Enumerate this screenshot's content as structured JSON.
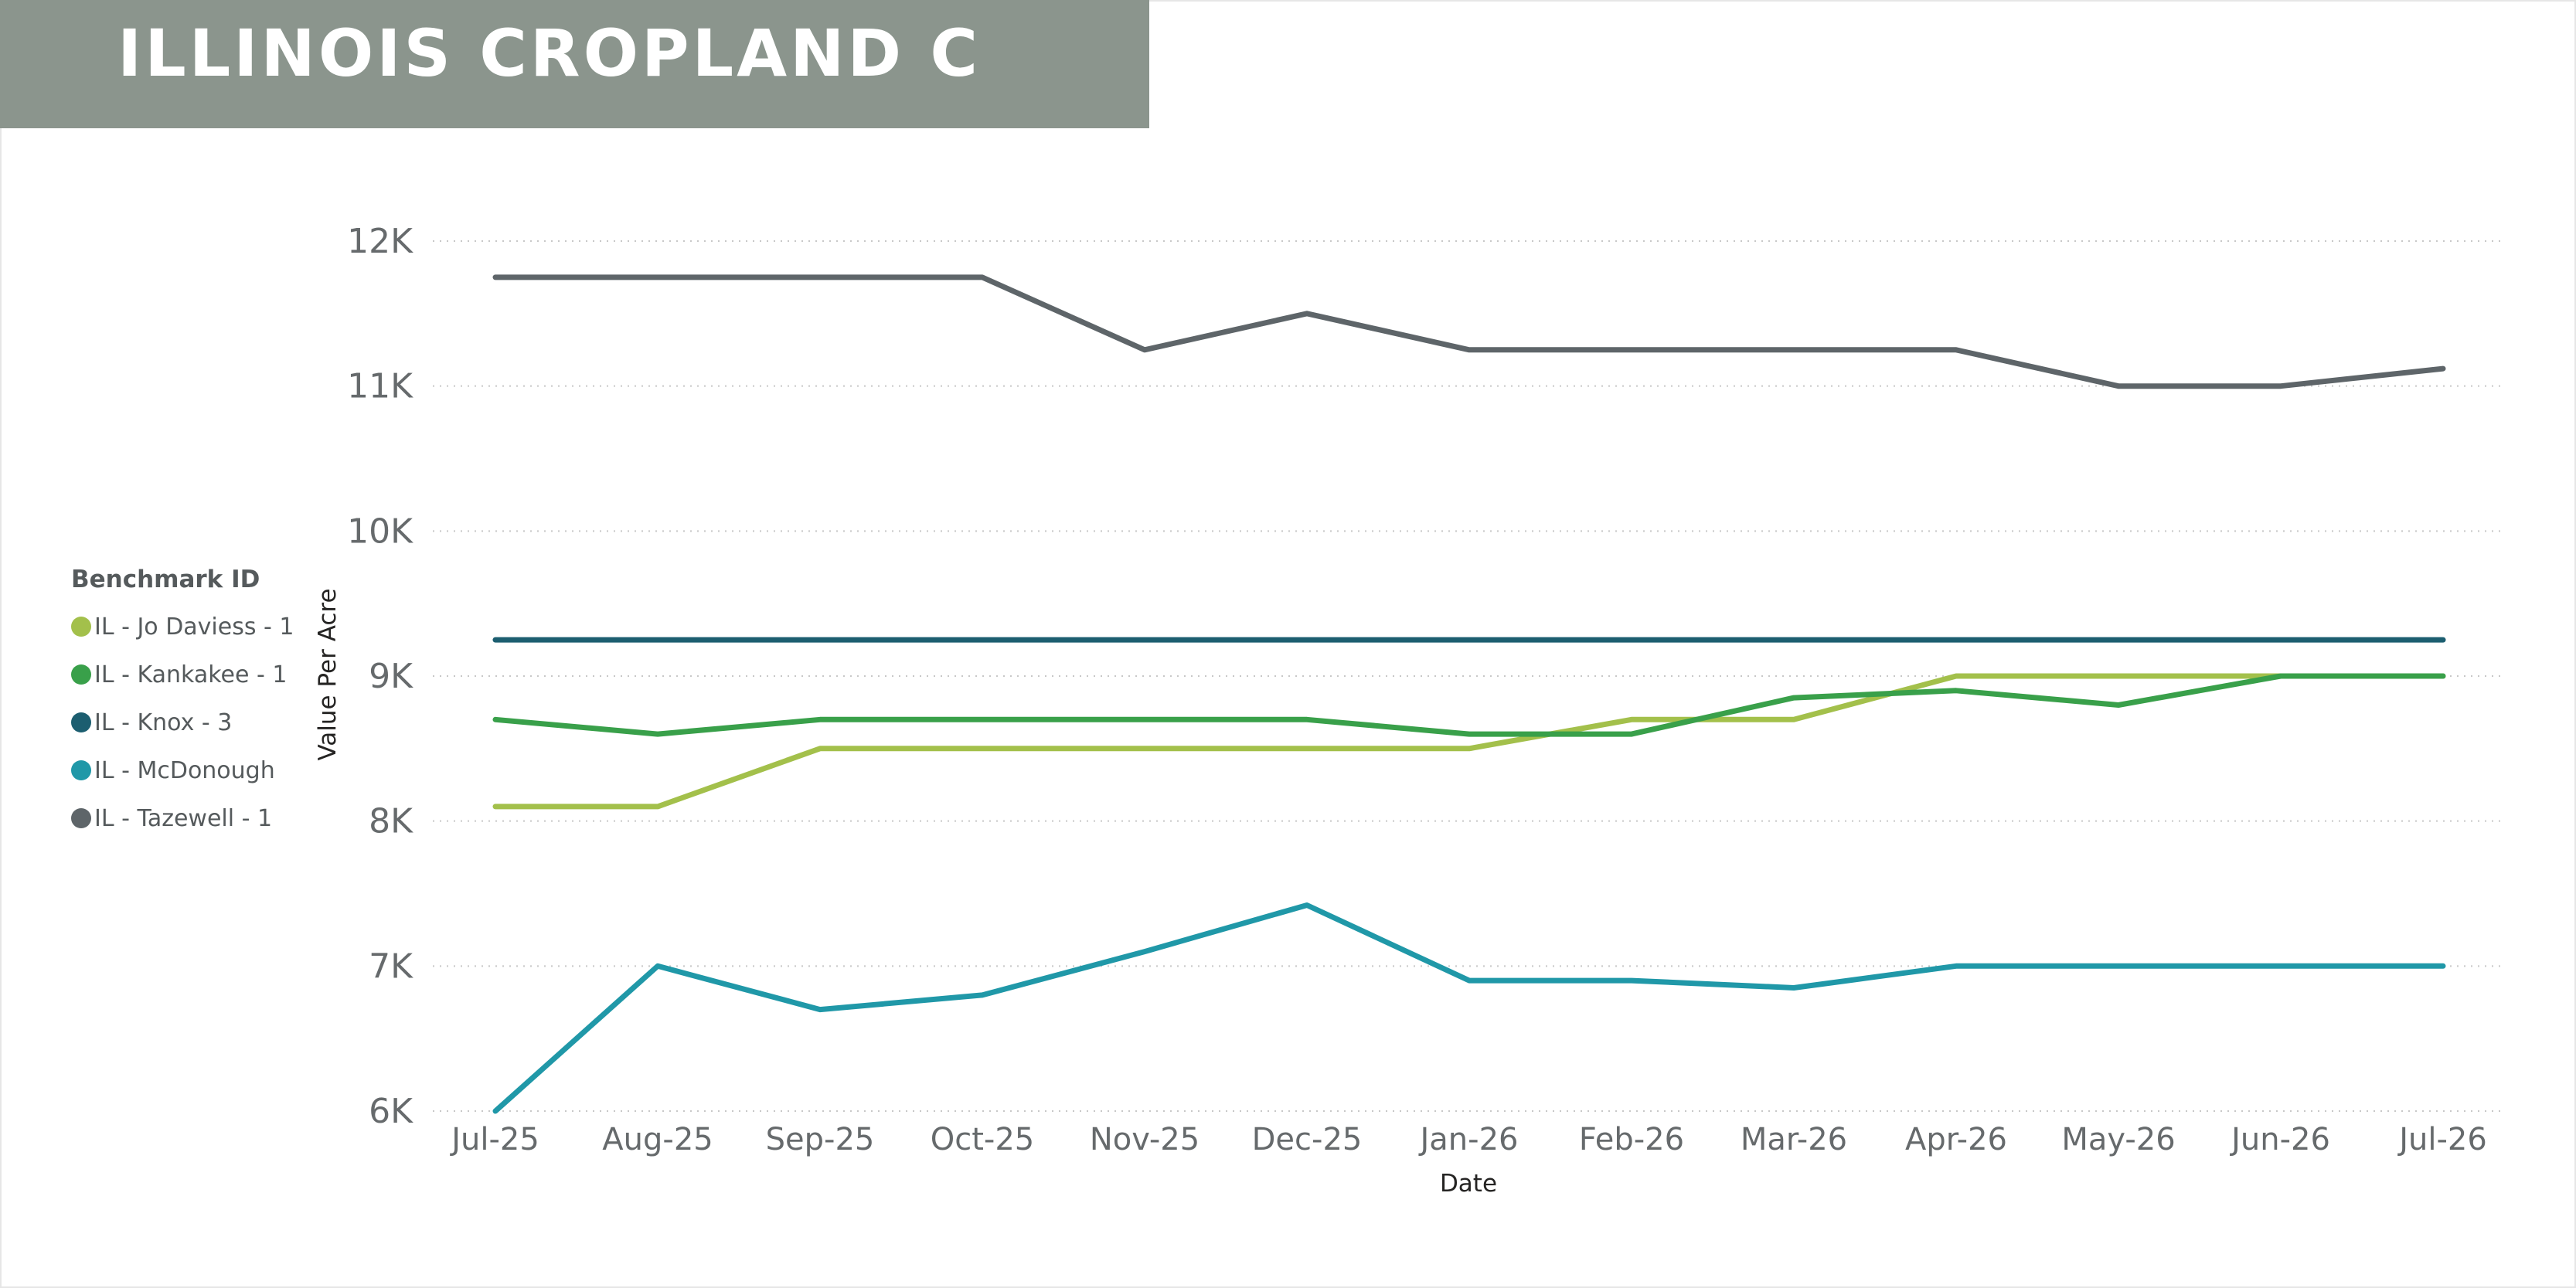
{
  "title": "ILLINOIS CROPLAND C",
  "legend": {
    "title": "Benchmark ID",
    "items": [
      {
        "label": "IL - Jo Daviess - 1",
        "color": "#a3c04b"
      },
      {
        "label": "IL - Kankakee - 1",
        "color": "#39a04a"
      },
      {
        "label": "IL - Knox - 3",
        "color": "#1c5e70"
      },
      {
        "label": "IL - McDonough",
        "color": "#2098a8"
      },
      {
        "label": "IL - Tazewell - 1",
        "color": "#5e6569"
      }
    ]
  },
  "chart_data": {
    "type": "line",
    "xlabel": "Date",
    "ylabel": "Value Per Acre",
    "ylim": [
      6000,
      12000
    ],
    "yticks": [
      6000,
      7000,
      8000,
      9000,
      10000,
      11000,
      12000
    ],
    "ytick_labels": [
      "6K",
      "7K",
      "8K",
      "9K",
      "10K",
      "11K",
      "12K"
    ],
    "grid": "horizontal dotted",
    "legend_position": "left",
    "categories": [
      "Jul-25",
      "Aug-25",
      "Sep-25",
      "Oct-25",
      "Nov-25",
      "Dec-25",
      "Jan-26",
      "Feb-26",
      "Mar-26",
      "Apr-26",
      "May-26",
      "Jun-26",
      "Jul-26"
    ],
    "series": [
      {
        "name": "IL - Jo Daviess - 1",
        "color": "#a3c04b",
        "values": [
          8100,
          8100,
          8500,
          8500,
          8500,
          8500,
          8500,
          8700,
          8700,
          9000,
          9000,
          9000,
          9000
        ]
      },
      {
        "name": "IL - Kankakee - 1",
        "color": "#39a04a",
        "values": [
          8700,
          8600,
          8700,
          8700,
          8700,
          8700,
          8600,
          8600,
          8850,
          8900,
          8800,
          9000,
          9000
        ]
      },
      {
        "name": "IL - Knox - 3",
        "color": "#1c5e70",
        "values": [
          9250,
          9250,
          9250,
          9250,
          9250,
          9250,
          9250,
          9250,
          9250,
          9250,
          9250,
          9250,
          9250
        ]
      },
      {
        "name": "IL - McDonough",
        "color": "#2098a8",
        "values": [
          6000,
          7000,
          6700,
          6800,
          7100,
          7420,
          6900,
          6900,
          6850,
          7000,
          7000,
          7000,
          7000
        ]
      },
      {
        "name": "IL - Tazewell - 1",
        "color": "#5e6569",
        "values": [
          11750,
          11750,
          11750,
          11750,
          11250,
          11500,
          11250,
          11250,
          11250,
          11250,
          11000,
          11000,
          11120
        ]
      }
    ]
  }
}
